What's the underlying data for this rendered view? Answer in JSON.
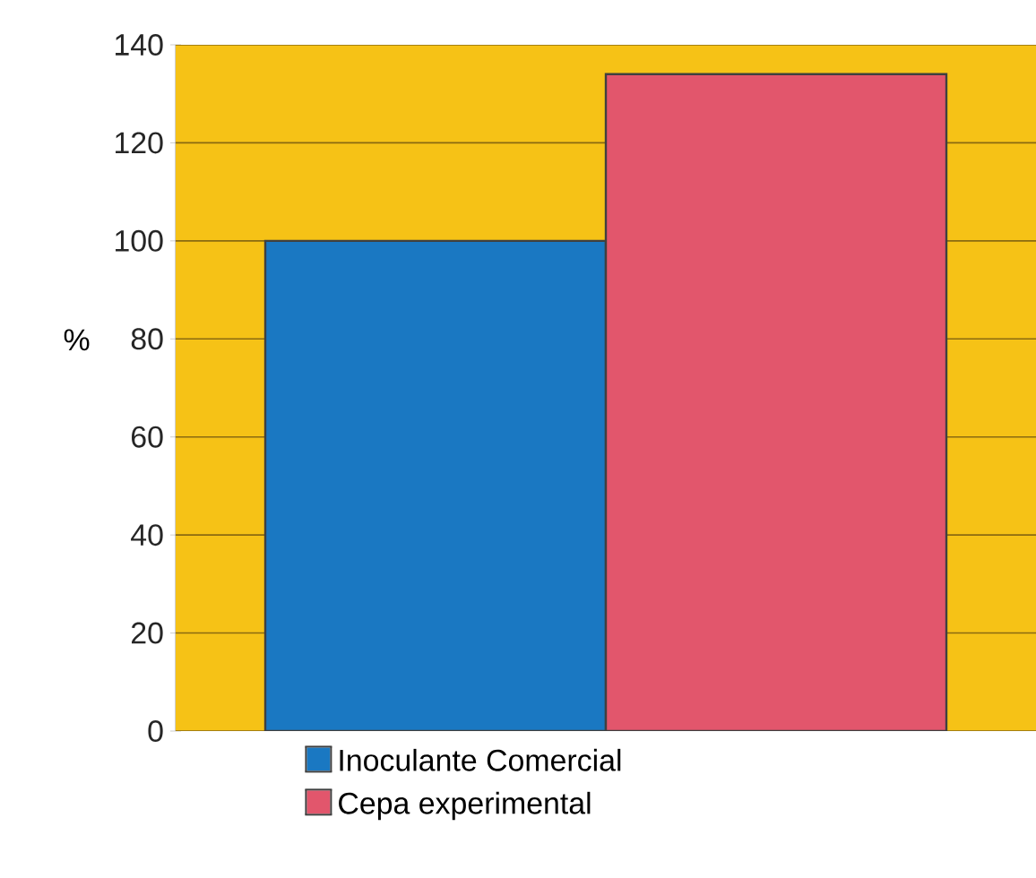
{
  "chart_data": {
    "type": "bar",
    "ylabel": "%",
    "categories": [
      null
    ],
    "series": [
      {
        "name": "Inoculante Comercial",
        "color": "#1a78c2",
        "values": [
          100
        ]
      },
      {
        "name": "Cepa experimental",
        "color": "#e2566c",
        "values": [
          134
        ]
      }
    ],
    "ylim": [
      0,
      140
    ],
    "yticks": [
      0,
      20,
      40,
      60,
      80,
      100,
      120,
      140
    ],
    "grid": "y",
    "legend": "bottom",
    "bands": [
      {
        "axis": "y",
        "from": 0,
        "to": 140,
        "color": "#f6c216"
      }
    ]
  }
}
